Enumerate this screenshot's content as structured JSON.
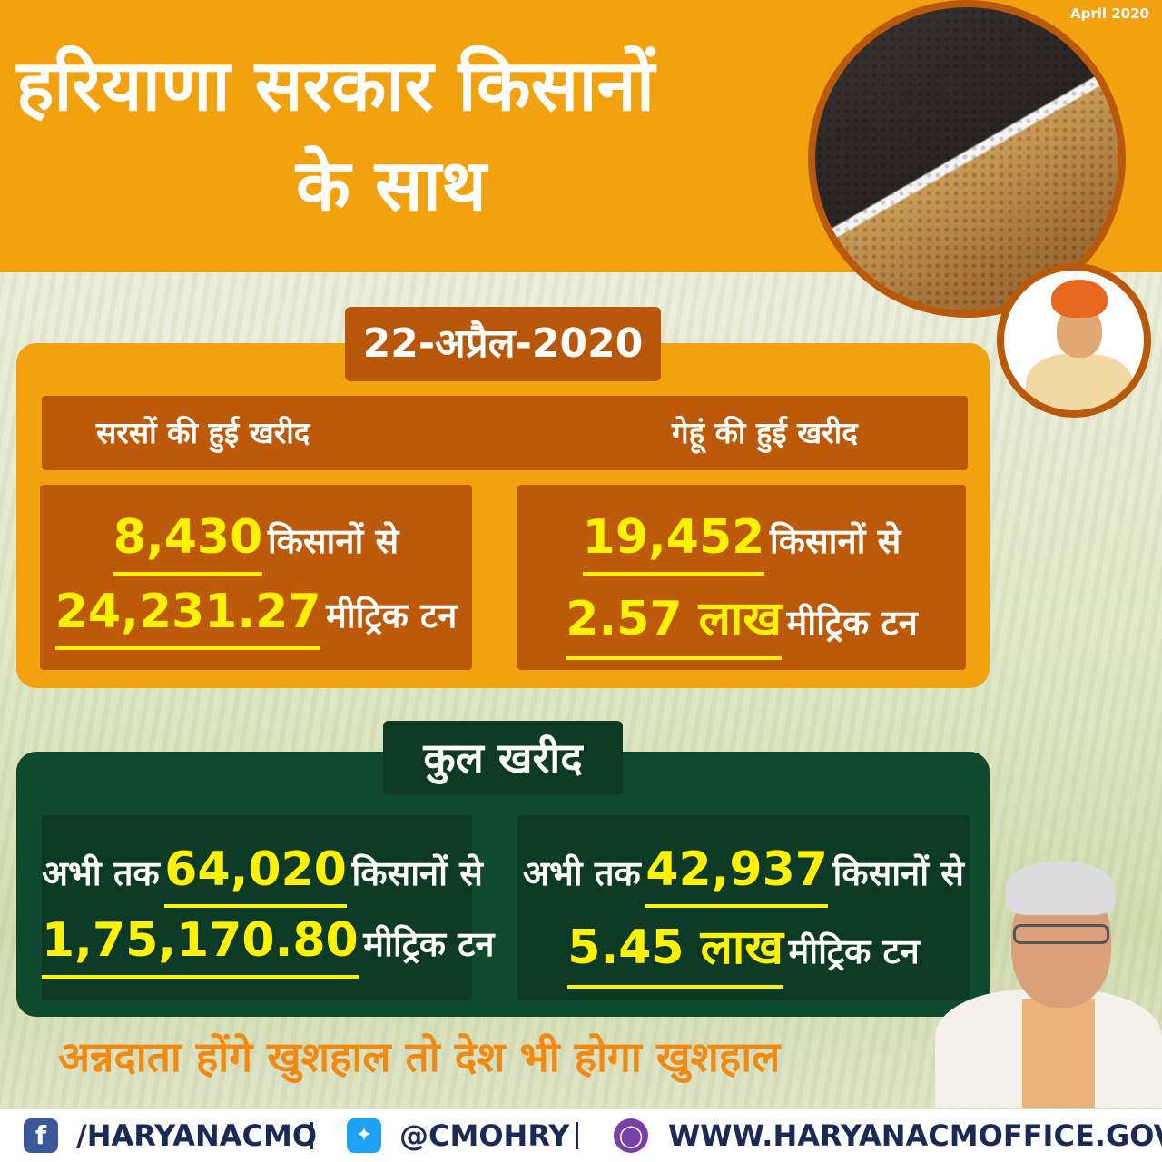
{
  "header": {
    "date_label": "April 2020",
    "title_line1": "हरियाणा सरकार किसानों",
    "title_line2": "के साथ"
  },
  "purchase": {
    "date": "22-अप्रैल-2020",
    "mustard": {
      "heading": "सरसों की हुई खरीद",
      "farmers": "8,430",
      "farmers_suffix": "किसानों से",
      "quantity": "24,231.27",
      "quantity_suffix": "मीट्रिक टन"
    },
    "wheat": {
      "heading": "गेहूं की हुई खरीद",
      "farmers": "19,452",
      "farmers_suffix": "किसानों से",
      "quantity": "2.57 लाख",
      "quantity_suffix": "मीट्रिक टन"
    }
  },
  "total": {
    "heading": "कुल खरीद",
    "mustard": {
      "prefix": "अभी तक",
      "farmers": "64,020",
      "farmers_suffix": "किसानों से",
      "quantity": "1,75,170.80",
      "quantity_suffix": "मीट्रिक टन"
    },
    "wheat": {
      "prefix": "अभी तक",
      "farmers": "42,937",
      "farmers_suffix": "किसानों से",
      "quantity": "5.45 लाख",
      "quantity_suffix": "मीट्रिक टन"
    }
  },
  "slogan": "अन्नदाता होंगे खुशहाल तो देश भी होगा खुशहाल",
  "footer": {
    "facebook": "/HARYANACMO",
    "twitter": "@CMOHRY",
    "website": "WWW.HARYANACMOFFICE.GOV.IN",
    "icons": [
      "facebook-icon",
      "twitter-icon",
      "globe-icon"
    ]
  },
  "colors": {
    "orange": "#f2a20f",
    "dark_orange": "#bd5a09",
    "green": "#0f4a2f",
    "dark_green": "#0d3a24",
    "highlight": "#fff200"
  }
}
